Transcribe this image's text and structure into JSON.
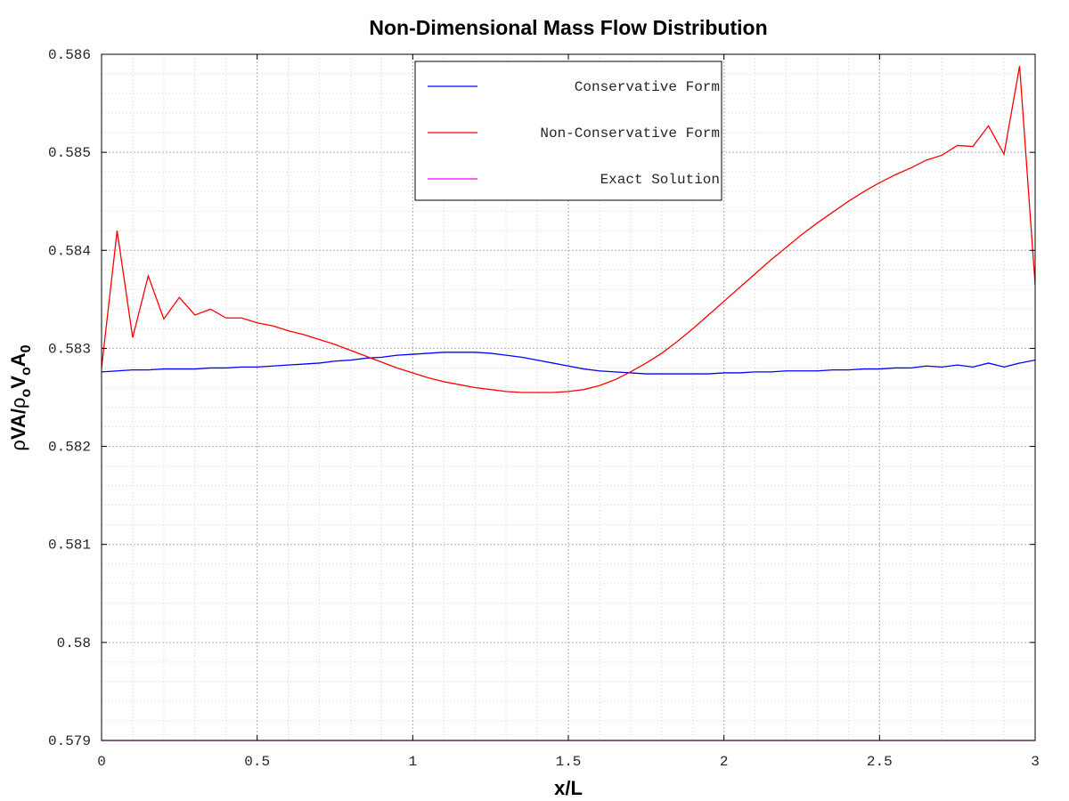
{
  "chart_data": {
    "type": "line",
    "title": "Non-Dimensional Mass Flow Distribution",
    "xlabel": "x/L",
    "ylabel_parts": {
      "rho1": "ρ",
      "va": "VA/",
      "rho2": "ρ",
      "sub_o1": "o",
      "v": "V",
      "sub_o2": "o",
      "a": "A",
      "sub_0": "0"
    },
    "xlim": [
      0,
      3
    ],
    "ylim": [
      0.579,
      0.586
    ],
    "xticks": [
      0,
      0.5,
      1,
      1.5,
      2,
      2.5,
      3
    ],
    "xtick_labels": [
      "0",
      "0.5",
      "1",
      "1.5",
      "2",
      "2.5",
      "3"
    ],
    "yticks": [
      0.579,
      0.58,
      0.581,
      0.582,
      0.583,
      0.584,
      0.585,
      0.586
    ],
    "ytick_labels": [
      "0.579",
      "0.58",
      "0.581",
      "0.582",
      "0.583",
      "0.584",
      "0.585",
      "0.586"
    ],
    "grid": true,
    "legend_position": "top-center",
    "series": [
      {
        "name": "Conservative Form",
        "color": "#0000ff",
        "x": [
          0,
          0.05,
          0.1,
          0.15,
          0.2,
          0.25,
          0.3,
          0.35,
          0.4,
          0.45,
          0.5,
          0.55,
          0.6,
          0.65,
          0.7,
          0.75,
          0.8,
          0.85,
          0.9,
          0.95,
          1.0,
          1.05,
          1.1,
          1.15,
          1.2,
          1.25,
          1.3,
          1.35,
          1.4,
          1.45,
          1.5,
          1.55,
          1.6,
          1.65,
          1.7,
          1.75,
          1.8,
          1.85,
          1.9,
          1.95,
          2.0,
          2.05,
          2.1,
          2.15,
          2.2,
          2.25,
          2.3,
          2.35,
          2.4,
          2.45,
          2.5,
          2.55,
          2.6,
          2.65,
          2.7,
          2.75,
          2.8,
          2.85,
          2.9,
          2.95,
          3.0
        ],
        "y": [
          0.58276,
          0.58277,
          0.58278,
          0.58278,
          0.58279,
          0.58279,
          0.58279,
          0.5828,
          0.5828,
          0.58281,
          0.58281,
          0.58282,
          0.58283,
          0.58284,
          0.58285,
          0.58287,
          0.58288,
          0.5829,
          0.58291,
          0.58293,
          0.58294,
          0.58295,
          0.58296,
          0.58296,
          0.58296,
          0.58295,
          0.58293,
          0.58291,
          0.58288,
          0.58285,
          0.58282,
          0.58279,
          0.58277,
          0.58276,
          0.58275,
          0.58274,
          0.58274,
          0.58274,
          0.58274,
          0.58274,
          0.58275,
          0.58275,
          0.58276,
          0.58276,
          0.58277,
          0.58277,
          0.58277,
          0.58278,
          0.58278,
          0.58279,
          0.58279,
          0.5828,
          0.5828,
          0.58282,
          0.58281,
          0.58283,
          0.58281,
          0.58285,
          0.58281,
          0.58285,
          0.58288
        ]
      },
      {
        "name": "Non-Conservative Form",
        "color": "#ff0000",
        "x": [
          0,
          0.05,
          0.1,
          0.15,
          0.2,
          0.25,
          0.3,
          0.35,
          0.4,
          0.45,
          0.5,
          0.55,
          0.6,
          0.65,
          0.7,
          0.75,
          0.8,
          0.85,
          0.9,
          0.95,
          1.0,
          1.05,
          1.1,
          1.15,
          1.2,
          1.25,
          1.3,
          1.35,
          1.4,
          1.45,
          1.5,
          1.55,
          1.6,
          1.65,
          1.7,
          1.75,
          1.8,
          1.85,
          1.9,
          1.95,
          2.0,
          2.05,
          2.1,
          2.15,
          2.2,
          2.25,
          2.3,
          2.35,
          2.4,
          2.45,
          2.5,
          2.55,
          2.6,
          2.65,
          2.7,
          2.75,
          2.8,
          2.85,
          2.9,
          2.95,
          3.0
        ],
        "y": [
          0.5828,
          0.5842,
          0.58311,
          0.58374,
          0.5833,
          0.58352,
          0.58334,
          0.5834,
          0.58331,
          0.58331,
          0.58326,
          0.58323,
          0.58318,
          0.58314,
          0.58309,
          0.58304,
          0.58298,
          0.58292,
          0.58286,
          0.5828,
          0.58275,
          0.5827,
          0.58266,
          0.58263,
          0.5826,
          0.58258,
          0.58256,
          0.58255,
          0.58255,
          0.58255,
          0.58256,
          0.58258,
          0.58262,
          0.58268,
          0.58276,
          0.58285,
          0.58295,
          0.58307,
          0.5832,
          0.58334,
          0.58348,
          0.58362,
          0.58376,
          0.5839,
          0.58403,
          0.58416,
          0.58428,
          0.58439,
          0.5845,
          0.5846,
          0.58469,
          0.58477,
          0.58484,
          0.58492,
          0.58497,
          0.58507,
          0.58506,
          0.58527,
          0.58498,
          0.58588,
          0.58365
        ]
      },
      {
        "name": "Exact Solution",
        "color": "#ff00ff",
        "x": [
          0,
          3
        ],
        "y": [
          0.579,
          0.579
        ]
      }
    ]
  }
}
